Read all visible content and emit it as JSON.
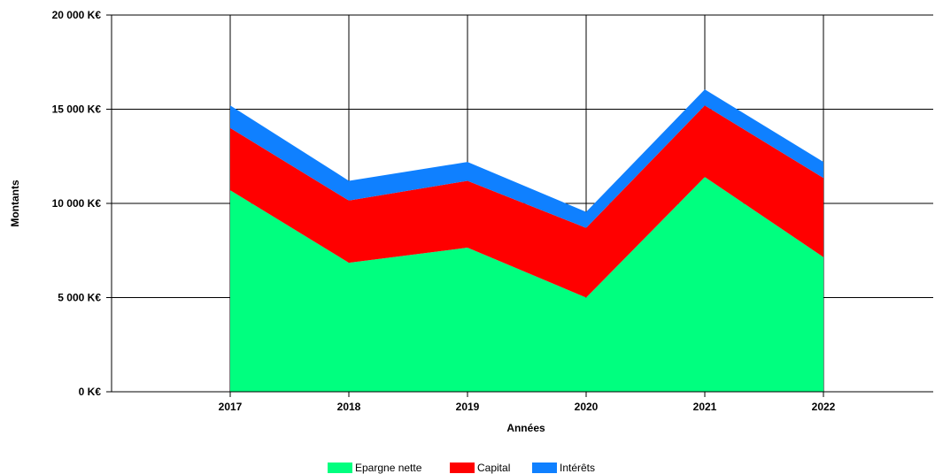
{
  "chart_data": {
    "type": "area",
    "stacked": true,
    "x": [
      "2017",
      "2018",
      "2019",
      "2020",
      "2021",
      "2022"
    ],
    "series": [
      {
        "name": "Epargne nette",
        "color": "#00ff7f",
        "values": [
          10700,
          6850,
          7650,
          5000,
          11400,
          7150
        ]
      },
      {
        "name": "Capital",
        "color": "#ff0000",
        "values": [
          3300,
          3300,
          3550,
          3700,
          3800,
          4200
        ]
      },
      {
        "name": "Intérêts",
        "color": "#0f80ff",
        "values": [
          1200,
          1050,
          1000,
          850,
          850,
          850
        ]
      }
    ],
    "xlabel": "Années",
    "ylabel": "Montants",
    "ylim": [
      0,
      20000
    ],
    "y_ticks": [
      "0 K€",
      "5 000 K€",
      "10 000 K€",
      "15 000 K€",
      "20 000 K€"
    ],
    "grid": true,
    "legend_position": "bottom"
  }
}
